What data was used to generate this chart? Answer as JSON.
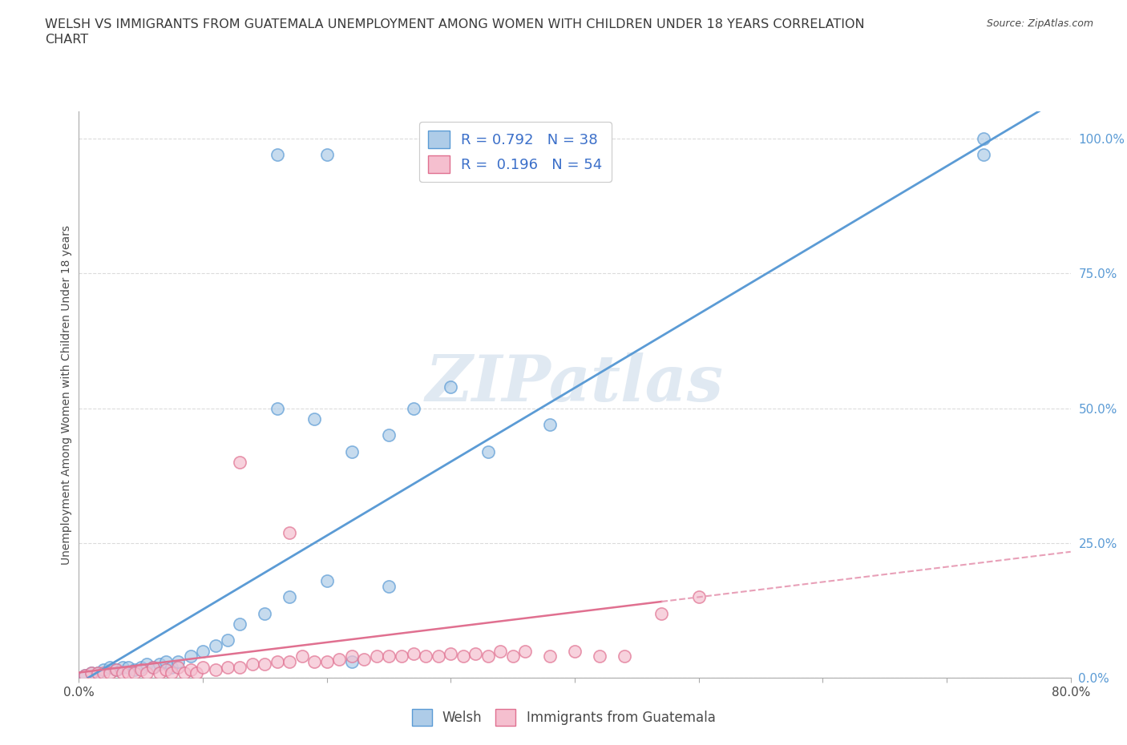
{
  "title_line1": "WELSH VS IMMIGRANTS FROM GUATEMALA UNEMPLOYMENT AMONG WOMEN WITH CHILDREN UNDER 18 YEARS CORRELATION",
  "title_line2": "CHART",
  "source": "Source: ZipAtlas.com",
  "ylabel": "Unemployment Among Women with Children Under 18 years",
  "xlim": [
    0,
    0.8
  ],
  "ylim": [
    0,
    1.05
  ],
  "xticks": [
    0.0,
    0.1,
    0.2,
    0.3,
    0.4,
    0.5,
    0.6,
    0.7,
    0.8
  ],
  "xticklabels": [
    "0.0%",
    "",
    "",
    "",
    "",
    "",
    "",
    "",
    "80.0%"
  ],
  "yticks": [
    0.0,
    0.25,
    0.5,
    0.75,
    1.0
  ],
  "yticklabels": [
    "0.0%",
    "25.0%",
    "50.0%",
    "75.0%",
    "100.0%"
  ],
  "welsh_color": "#aecce8",
  "welsh_edge": "#5b9bd5",
  "guatemala_color": "#f5bfcf",
  "guatemala_edge": "#e07090",
  "line_welsh_color": "#5b9bd5",
  "line_guatemala_solid_color": "#e07090",
  "line_guatemala_dash_color": "#e8a0b8",
  "R_welsh": 0.792,
  "N_welsh": 38,
  "R_guatemala": 0.196,
  "N_guatemala": 54,
  "legend_welsh_label": "Welsh",
  "legend_guatemala_label": "Immigrants from Guatemala",
  "watermark": "ZIPatlas",
  "welsh_x": [
    0.005,
    0.01,
    0.015,
    0.02,
    0.025,
    0.03,
    0.035,
    0.04,
    0.045,
    0.05,
    0.055,
    0.06,
    0.065,
    0.07,
    0.075,
    0.08,
    0.09,
    0.1,
    0.11,
    0.12,
    0.13,
    0.15,
    0.17,
    0.2,
    0.22,
    0.25,
    0.27,
    0.3,
    0.33,
    0.38,
    0.16,
    0.19,
    0.22,
    0.25,
    0.73,
    0.73,
    0.16,
    0.2
  ],
  "welsh_y": [
    0.005,
    0.01,
    0.01,
    0.015,
    0.02,
    0.015,
    0.02,
    0.02,
    0.015,
    0.02,
    0.025,
    0.02,
    0.025,
    0.03,
    0.02,
    0.03,
    0.04,
    0.05,
    0.06,
    0.07,
    0.1,
    0.12,
    0.15,
    0.18,
    0.42,
    0.45,
    0.5,
    0.54,
    0.42,
    0.47,
    0.5,
    0.48,
    0.03,
    0.17,
    0.97,
    1.0,
    0.97,
    0.97
  ],
  "guatemala_x": [
    0.005,
    0.01,
    0.015,
    0.02,
    0.025,
    0.03,
    0.035,
    0.04,
    0.045,
    0.05,
    0.055,
    0.06,
    0.065,
    0.07,
    0.075,
    0.08,
    0.085,
    0.09,
    0.095,
    0.1,
    0.11,
    0.12,
    0.13,
    0.14,
    0.15,
    0.16,
    0.17,
    0.18,
    0.19,
    0.2,
    0.21,
    0.22,
    0.23,
    0.24,
    0.25,
    0.26,
    0.27,
    0.28,
    0.29,
    0.3,
    0.31,
    0.32,
    0.33,
    0.34,
    0.35,
    0.36,
    0.38,
    0.4,
    0.42,
    0.44,
    0.13,
    0.17,
    0.47,
    0.5
  ],
  "guatemala_y": [
    0.005,
    0.01,
    0.01,
    0.01,
    0.01,
    0.015,
    0.01,
    0.01,
    0.01,
    0.015,
    0.01,
    0.02,
    0.01,
    0.015,
    0.01,
    0.02,
    0.01,
    0.015,
    0.01,
    0.02,
    0.015,
    0.02,
    0.02,
    0.025,
    0.025,
    0.03,
    0.03,
    0.04,
    0.03,
    0.03,
    0.035,
    0.04,
    0.035,
    0.04,
    0.04,
    0.04,
    0.045,
    0.04,
    0.04,
    0.045,
    0.04,
    0.045,
    0.04,
    0.05,
    0.04,
    0.05,
    0.04,
    0.05,
    0.04,
    0.04,
    0.4,
    0.27,
    0.12,
    0.15
  ],
  "background_color": "#ffffff",
  "grid_color": "#d8d8d8"
}
